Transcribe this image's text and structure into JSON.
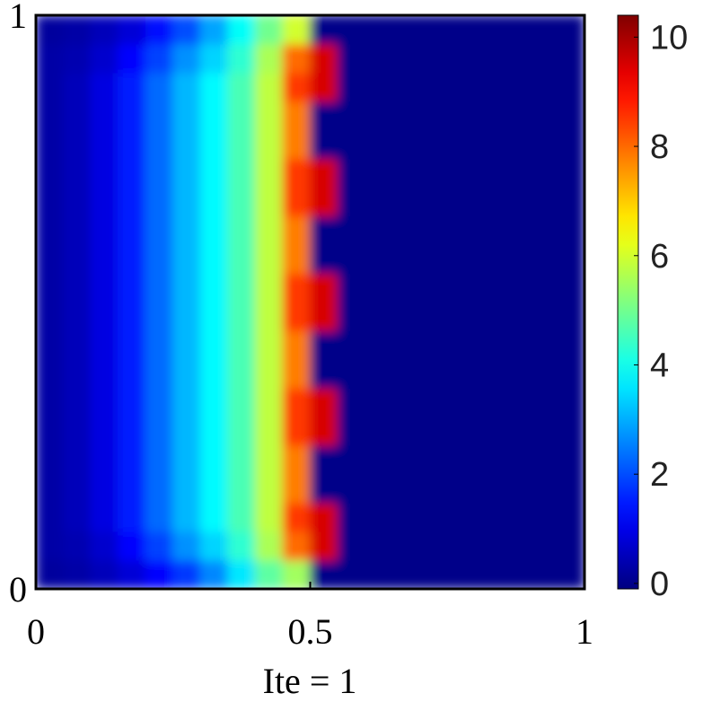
{
  "chart_data": {
    "type": "heatmap",
    "xlabel": "Ite = 1",
    "xlim": [
      0,
      1
    ],
    "ylim": [
      0,
      1
    ],
    "xticks": [
      0,
      0.5,
      1
    ],
    "yticks": [
      0,
      1
    ],
    "clim": [
      -0.1,
      10.4
    ],
    "cticks": [
      0,
      2,
      4,
      6,
      8,
      10
    ],
    "colormap": "jet",
    "xbins": [
      0,
      0.05,
      0.1,
      0.15,
      0.2,
      0.25,
      0.3,
      0.35,
      0.4,
      0.45,
      0.5,
      0.55,
      1
    ],
    "ybins": [
      0,
      0.05,
      0.1,
      0.15,
      0.2,
      0.25,
      0.3,
      0.35,
      0.4,
      0.45,
      0.5,
      0.55,
      0.6,
      0.65,
      0.7,
      0.75,
      0.8,
      0.85,
      0.9,
      0.95,
      1
    ],
    "z": [
      [
        0.2,
        0.3,
        0.5,
        0.8,
        1.2,
        1.8,
        2.6,
        3.6,
        4.8,
        5.5,
        0,
        0
      ],
      [
        0.3,
        0.4,
        0.7,
        1.2,
        1.9,
        2.7,
        3.4,
        4.3,
        5.6,
        8.0,
        9.5,
        0
      ],
      [
        0.3,
        0.5,
        0.9,
        1.5,
        2.3,
        3.1,
        3.8,
        4.6,
        5.8,
        8.5,
        9.5,
        0
      ],
      [
        0.3,
        0.5,
        0.9,
        1.5,
        2.3,
        3.1,
        3.8,
        4.6,
        5.8,
        7.8,
        0,
        0
      ],
      [
        0.3,
        0.5,
        0.9,
        1.5,
        2.3,
        3.1,
        3.8,
        4.6,
        5.8,
        7.8,
        0,
        0
      ],
      [
        0.3,
        0.5,
        0.9,
        1.5,
        2.3,
        3.1,
        3.8,
        4.6,
        5.8,
        8.5,
        9.5,
        0
      ],
      [
        0.3,
        0.5,
        0.9,
        1.5,
        2.3,
        3.1,
        3.8,
        4.6,
        5.8,
        8.5,
        9.5,
        0
      ],
      [
        0.3,
        0.5,
        0.9,
        1.5,
        2.3,
        3.1,
        3.8,
        4.6,
        5.8,
        7.8,
        0,
        0
      ],
      [
        0.3,
        0.5,
        0.9,
        1.5,
        2.3,
        3.1,
        3.8,
        4.6,
        5.8,
        7.8,
        0,
        0
      ],
      [
        0.3,
        0.5,
        0.9,
        1.5,
        2.3,
        3.1,
        3.8,
        4.6,
        5.8,
        8.5,
        9.5,
        0
      ],
      [
        0.3,
        0.5,
        0.9,
        1.5,
        2.3,
        3.1,
        3.8,
        4.6,
        5.8,
        8.5,
        9.5,
        0
      ],
      [
        0.3,
        0.5,
        0.9,
        1.5,
        2.3,
        3.1,
        3.8,
        4.6,
        5.8,
        7.8,
        0,
        0
      ],
      [
        0.3,
        0.5,
        0.9,
        1.5,
        2.3,
        3.1,
        3.8,
        4.6,
        5.8,
        7.8,
        0,
        0
      ],
      [
        0.3,
        0.5,
        0.9,
        1.5,
        2.3,
        3.1,
        3.8,
        4.6,
        5.8,
        8.5,
        9.5,
        0
      ],
      [
        0.3,
        0.5,
        0.9,
        1.5,
        2.3,
        3.1,
        3.8,
        4.6,
        5.8,
        8.5,
        9.5,
        0
      ],
      [
        0.3,
        0.5,
        0.9,
        1.5,
        2.3,
        3.1,
        3.8,
        4.6,
        5.8,
        7.8,
        0,
        0
      ],
      [
        0.3,
        0.5,
        0.9,
        1.5,
        2.3,
        3.1,
        3.8,
        4.6,
        5.8,
        7.8,
        0,
        0
      ],
      [
        0.3,
        0.5,
        0.9,
        1.5,
        2.3,
        3.1,
        3.8,
        4.6,
        5.8,
        8.5,
        9.5,
        0
      ],
      [
        0.3,
        0.4,
        0.7,
        1.2,
        1.9,
        2.7,
        3.4,
        4.3,
        5.6,
        8.0,
        9.5,
        0
      ],
      [
        0.2,
        0.3,
        0.5,
        0.8,
        1.3,
        2.0,
        2.9,
        3.9,
        5.0,
        6.0,
        0,
        0
      ]
    ]
  }
}
